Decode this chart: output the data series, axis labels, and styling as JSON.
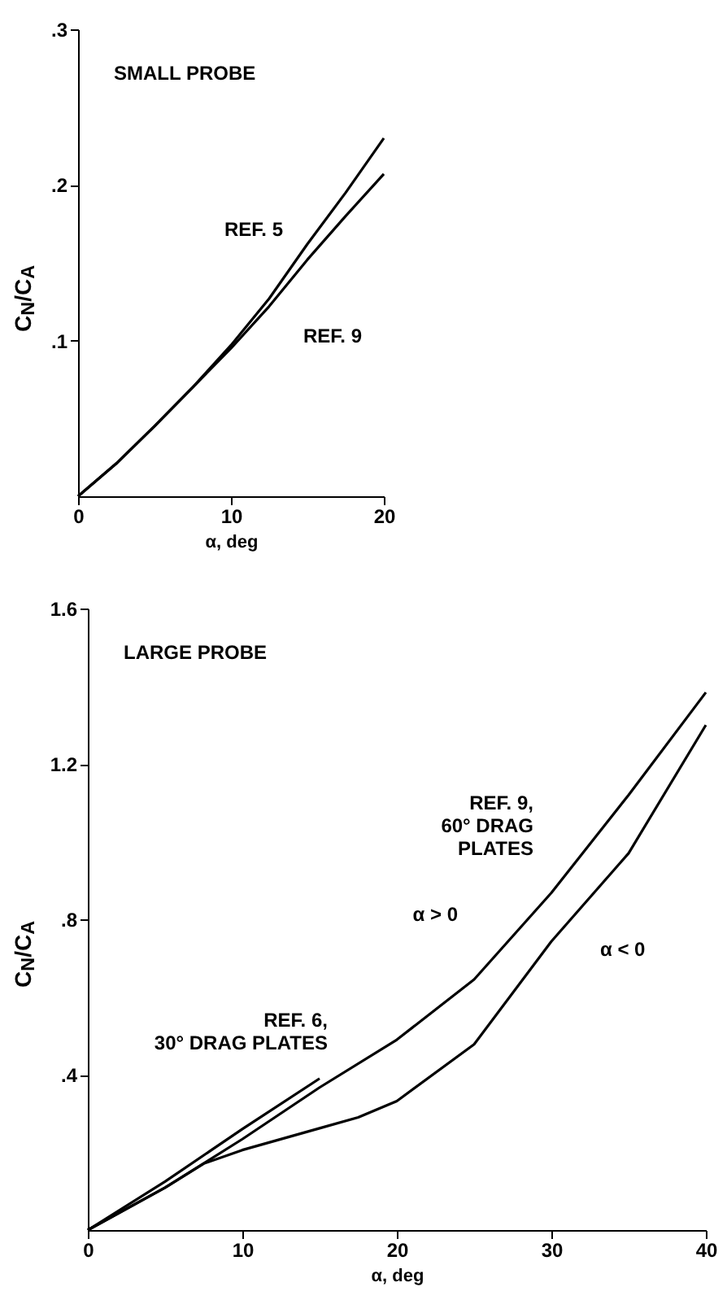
{
  "chart_data": [
    {
      "type": "line",
      "title": "SMALL PROBE",
      "xlabel": "α, deg",
      "ylabel": "C$_{N}$/C$_{A}$",
      "xlim": [
        0,
        20
      ],
      "ylim": [
        0,
        0.3
      ],
      "xticks": [
        0,
        10,
        20
      ],
      "yticks": [
        {
          "value": 0.1,
          "label": ".1"
        },
        {
          "value": 0.2,
          "label": ".2"
        },
        {
          "value": 0.3,
          "label": ".3"
        }
      ],
      "grid": false,
      "legend": false,
      "series": [
        {
          "name": "REF. 5",
          "color": "#000000",
          "x": [
            0,
            2.5,
            5,
            7.5,
            10,
            12.5,
            15,
            17.5,
            20
          ],
          "values": [
            0,
            0.021,
            0.045,
            0.07,
            0.097,
            0.127,
            0.162,
            0.195,
            0.23
          ]
        },
        {
          "name": "REF. 9",
          "color": "#000000",
          "x": [
            0,
            2.5,
            5,
            7.5,
            10,
            12.5,
            15,
            17.5,
            20
          ],
          "values": [
            0,
            0.021,
            0.045,
            0.07,
            0.095,
            0.122,
            0.152,
            0.18,
            0.207
          ]
        }
      ]
    },
    {
      "type": "line",
      "title": "LARGE PROBE",
      "xlabel": "α, deg",
      "ylabel": "C$_{N}$/C$_{A}$",
      "xlim": [
        0,
        40
      ],
      "ylim": [
        0,
        1.6
      ],
      "xticks": [
        0,
        10,
        20,
        30,
        40
      ],
      "yticks": [
        {
          "value": 0.4,
          "label": ".4"
        },
        {
          "value": 0.8,
          "label": ".8"
        },
        1.2,
        1.6
      ],
      "grid": false,
      "legend": false,
      "annotations": [
        {
          "text": "REF. 9,\n60° DRAG\nPLATES",
          "x": 32,
          "y": 0.97
        }
      ],
      "series": [
        {
          "name": "α > 0",
          "color": "#000000",
          "x": [
            0,
            5,
            10,
            15,
            20,
            25,
            30,
            35,
            40
          ],
          "values": [
            0,
            0.109,
            0.234,
            0.367,
            0.49,
            0.645,
            0.868,
            1.12,
            1.384
          ]
        },
        {
          "name": "α < 0",
          "color": "#000000",
          "x": [
            0,
            5,
            7.5,
            10,
            15,
            17.5,
            20,
            25,
            30,
            35,
            40
          ],
          "values": [
            0,
            0.109,
            0.171,
            0.206,
            0.262,
            0.29,
            0.332,
            0.478,
            0.743,
            0.97,
            1.3
          ]
        },
        {
          "name": "REF. 6,\n30° DRAG PLATES",
          "color": "#000000",
          "x": [
            0,
            5,
            10,
            15
          ],
          "values": [
            0,
            0.125,
            0.26,
            0.39
          ]
        }
      ]
    }
  ]
}
